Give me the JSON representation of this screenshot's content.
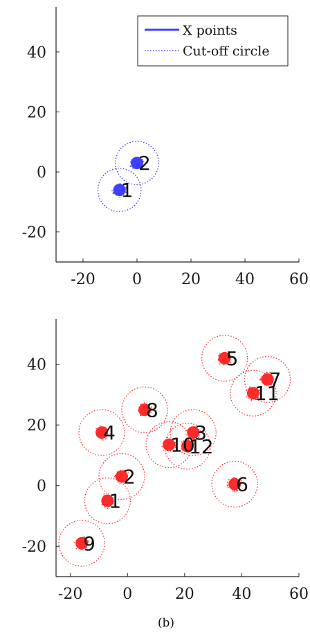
{
  "caption": "(b)",
  "chart_data": [
    {
      "type": "scatter",
      "title": "",
      "xlabel": "",
      "ylabel": "",
      "xlim": [
        -30,
        60
      ],
      "ylim": [
        -30,
        55
      ],
      "xticks": [
        -20,
        0,
        20,
        40,
        60
      ],
      "yticks": [
        -20,
        0,
        20,
        40
      ],
      "xtick_labels": [
        "-20",
        "0",
        "20",
        "40",
        "60"
      ],
      "ytick_labels": [
        "-20",
        "0",
        "20",
        "40"
      ],
      "grid": false,
      "legend": {
        "placement": "top-right",
        "entries": [
          {
            "label": "X points",
            "style": "solid",
            "color": "#3f3fff"
          },
          {
            "label": "Cut-off circle",
            "style": "dotted",
            "color": "#3f3fff"
          }
        ]
      },
      "color": "#3f3fff",
      "cutoff_radius": 8,
      "points": [
        {
          "label": "1",
          "x": -6.5,
          "y": -6
        },
        {
          "label": "2",
          "x": 0,
          "y": 3
        }
      ]
    },
    {
      "type": "scatter",
      "title": "",
      "xlabel": "",
      "ylabel": "",
      "xlim": [
        -25,
        60
      ],
      "ylim": [
        -30,
        55
      ],
      "xticks": [
        -20,
        0,
        20,
        40,
        60
      ],
      "yticks": [
        -20,
        0,
        20,
        40
      ],
      "xtick_labels": [
        "-20",
        "0",
        "20",
        "40",
        "60"
      ],
      "ytick_labels": [
        "-20",
        "0",
        "20",
        "40"
      ],
      "grid": false,
      "color": "#ff2a2a",
      "cutoff_radius": 8,
      "points": [
        {
          "label": "1",
          "x": -7,
          "y": -5
        },
        {
          "label": "2",
          "x": -2,
          "y": 3
        },
        {
          "label": "3",
          "x": 23,
          "y": 17.5
        },
        {
          "label": "4",
          "x": -9,
          "y": 17.5
        },
        {
          "label": "5",
          "x": 34,
          "y": 42
        },
        {
          "label": "6",
          "x": 37.5,
          "y": 0.5
        },
        {
          "label": "7",
          "x": 49,
          "y": 35
        },
        {
          "label": "8",
          "x": 6,
          "y": 25
        },
        {
          "label": "9",
          "x": -16,
          "y": -19
        },
        {
          "label": "10",
          "x": 14.5,
          "y": 13.5
        },
        {
          "label": "11",
          "x": 44,
          "y": 30.5
        },
        {
          "label": "12",
          "x": 21,
          "y": 13
        }
      ]
    }
  ]
}
